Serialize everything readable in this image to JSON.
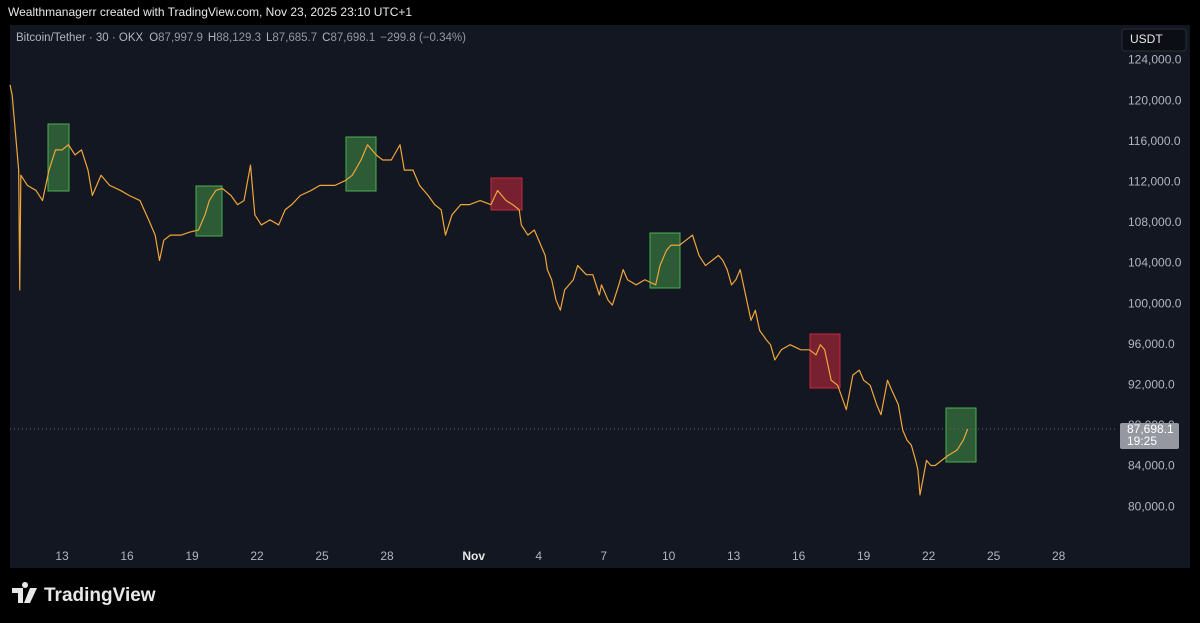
{
  "header": {
    "caption": "Wealthmanagerr created with TradingView.com, Nov 23, 2025 23:10 UTC+1"
  },
  "chart_data": {
    "type": "line",
    "symbol": "Bitcoin/Tether · 30 · OKX",
    "ohlc": [
      {
        "label": "O",
        "value": "87,997.9"
      },
      {
        "label": "H",
        "value": "88,129.3"
      },
      {
        "label": "L",
        "value": "87,685.7"
      },
      {
        "label": "C",
        "value": "87,698.1"
      }
    ],
    "change": "−299.8 (−0.34%)",
    "currency": "USDT",
    "color": "#f0a53a",
    "grid": false,
    "x": [
      10.6,
      10.7,
      11.0,
      11.05,
      11.1,
      11.4,
      11.8,
      12.1,
      12.4,
      12.7,
      13.0,
      13.3,
      13.6,
      13.9,
      14.2,
      14.4,
      14.8,
      15.2,
      15.7,
      16.1,
      16.6,
      17.0,
      17.3,
      17.5,
      17.7,
      18.0,
      18.5,
      18.9,
      19.3,
      19.6,
      19.8,
      20.1,
      20.4,
      20.8,
      21.1,
      21.4,
      21.7,
      21.9,
      22.2,
      22.6,
      23.0,
      23.3,
      23.6,
      24.0,
      24.5,
      24.9,
      25.6,
      26.1,
      26.4,
      26.8,
      27.1,
      27.5,
      27.8,
      28.2,
      28.6,
      28.8,
      29.2,
      29.5,
      29.9,
      30.2,
      30.5,
      30.7,
      31.0,
      31.4,
      31.8,
      32.3,
      32.8,
      33.1,
      33.5,
      33.8,
      34.1,
      34.2,
      34.5,
      34.8,
      35.1,
      35.3,
      35.4,
      35.6,
      35.8,
      36.0,
      36.2,
      36.6,
      36.8,
      37.2,
      37.5,
      37.8,
      37.9,
      38.2,
      38.4,
      38.7,
      38.9,
      39.1,
      39.5,
      39.9,
      40.4,
      40.6,
      40.9,
      41.1,
      41.5,
      41.8,
      42.1,
      42.4,
      42.7,
      43.0,
      43.3,
      43.5,
      43.7,
      43.9,
      44.1,
      44.3,
      44.5,
      44.8,
      45.0,
      45.2,
      45.5,
      45.7,
      45.9,
      46.2,
      46.6,
      47.1,
      47.5,
      47.8,
      48.0,
      48.2,
      48.5,
      48.8,
      49.2,
      49.5,
      49.8,
      50.0,
      50.3,
      50.6,
      50.8,
      51.1,
      51.3,
      51.6,
      51.8,
      52.0,
      52.2,
      52.4,
      52.5,
      52.6,
      52.9,
      53.1,
      53.3,
      53.6,
      53.9,
      54.3,
      54.6,
      54.8
    ],
    "values": [
      121600,
      120600,
      113200,
      101400,
      112700,
      111700,
      111200,
      110200,
      113200,
      115200,
      115200,
      115700,
      114700,
      115200,
      113200,
      110700,
      112700,
      111700,
      111200,
      110700,
      110200,
      108300,
      106800,
      104300,
      106300,
      106800,
      106800,
      107100,
      107300,
      108800,
      110200,
      111200,
      111400,
      110700,
      109800,
      110200,
      113700,
      108800,
      107800,
      108300,
      107800,
      109300,
      109800,
      110700,
      111200,
      111700,
      111700,
      112200,
      112700,
      114200,
      115700,
      114700,
      114200,
      114200,
      115700,
      113200,
      113200,
      111700,
      110700,
      109800,
      109300,
      106800,
      108800,
      109800,
      109800,
      110200,
      109800,
      111200,
      110200,
      109800,
      109300,
      107800,
      106800,
      107300,
      105800,
      104800,
      103400,
      102400,
      100400,
      99400,
      101400,
      102400,
      103800,
      102900,
      102900,
      100900,
      101900,
      100400,
      99900,
      101900,
      103400,
      102400,
      101900,
      102400,
      101900,
      103800,
      105300,
      105800,
      105800,
      106300,
      106800,
      104800,
      103800,
      104300,
      104800,
      104300,
      103400,
      101900,
      102400,
      103400,
      101400,
      98400,
      99400,
      97400,
      96500,
      96000,
      94500,
      95500,
      96000,
      95500,
      95500,
      95000,
      96000,
      95500,
      92500,
      92000,
      89600,
      93000,
      93500,
      92500,
      92000,
      90100,
      89100,
      92500,
      91500,
      90100,
      87600,
      86600,
      86100,
      84600,
      83700,
      81200,
      84600,
      84100,
      84100,
      84600,
      85100,
      85600,
      86600,
      87698.1
    ],
    "xlim": [
      10.6,
      61.6
    ],
    "xticks": [
      13,
      16,
      19,
      22,
      25,
      28,
      {
        "value": 32,
        "label": "Nov"
      },
      {
        "value": 35,
        "label": "4"
      },
      {
        "value": 38,
        "label": "7"
      },
      {
        "value": 41,
        "label": "10"
      },
      {
        "value": 44,
        "label": "13"
      },
      {
        "value": 47,
        "label": "16"
      },
      {
        "value": 50,
        "label": "19"
      },
      {
        "value": 53,
        "label": "22"
      },
      {
        "value": 56,
        "label": "25"
      },
      {
        "value": 59,
        "label": "28"
      }
    ],
    "ylim": [
      74000,
      127500
    ],
    "yticks": [
      {
        "value": 80000,
        "label": "80,000.0"
      },
      {
        "value": 84000,
        "label": "84,000.0"
      },
      {
        "value": 88000,
        "label": "88,000.0"
      },
      {
        "value": 92000,
        "label": "92,000.0"
      },
      {
        "value": 96000,
        "label": "96,000.0"
      },
      {
        "value": 100000,
        "label": "100,000.0"
      },
      {
        "value": 104000,
        "label": "104,000.0"
      },
      {
        "value": 108000,
        "label": "108,000.0"
      },
      {
        "value": 112000,
        "label": "112,000.0"
      },
      {
        "value": 116000,
        "label": "116,000.0"
      },
      {
        "value": 120000,
        "label": "120,000.0"
      },
      {
        "value": 124000,
        "label": "124,000.0"
      }
    ],
    "price_line": {
      "value": 87698.1,
      "label": "87,698.1",
      "countdown": "19:25"
    }
  },
  "footer": {
    "brand": "TradingView"
  }
}
